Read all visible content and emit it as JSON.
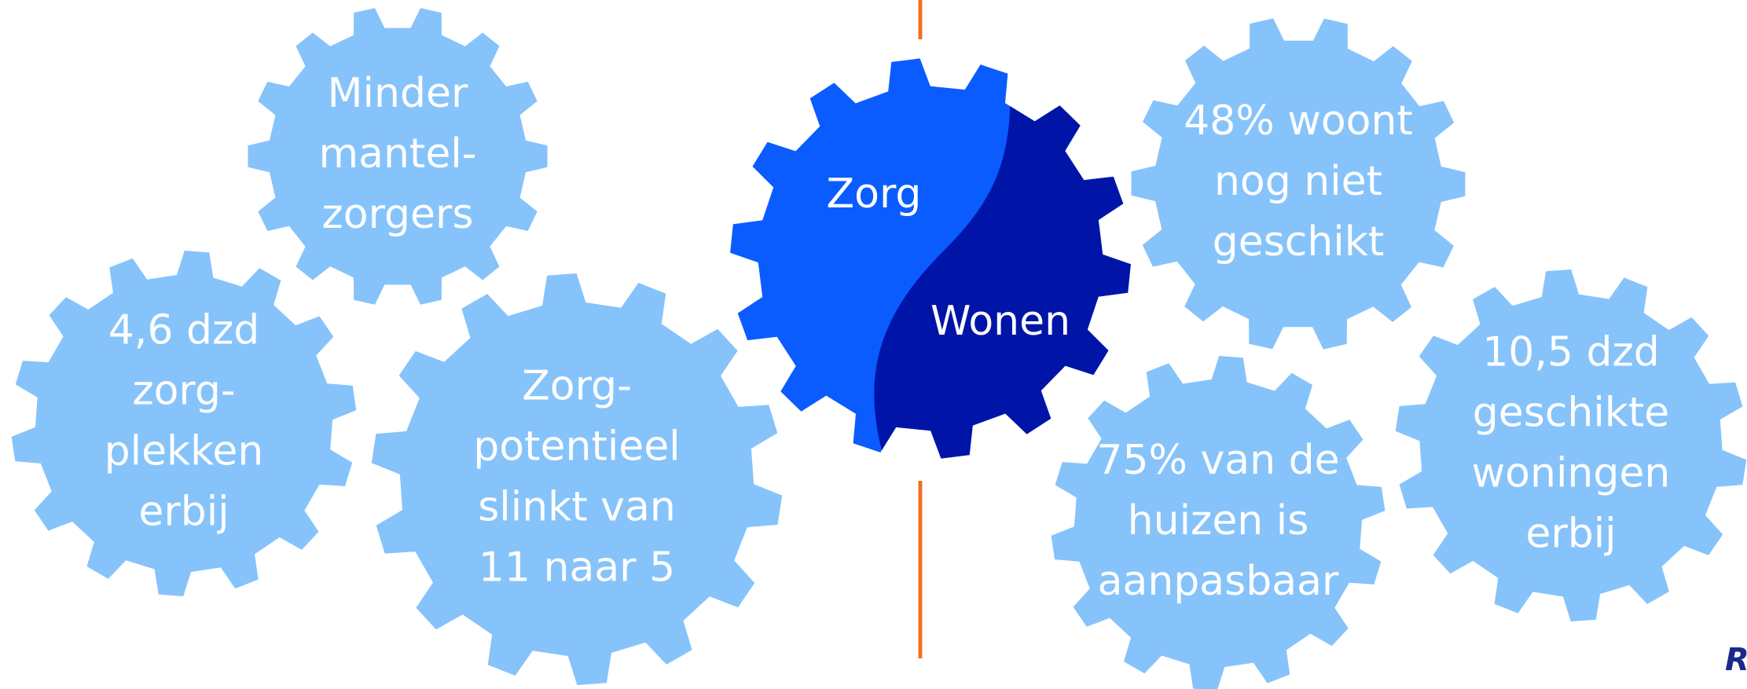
{
  "center": {
    "left": "Zorg",
    "right": "Wonen"
  },
  "gears": [
    {
      "lines": [
        "Minder",
        "mantel-",
        "zorgers"
      ]
    },
    {
      "lines": [
        "4,6 dzd",
        "zorg-",
        "plekken",
        "erbij"
      ]
    },
    {
      "lines": [
        "Zorg-",
        "potentieel",
        "slinkt van",
        "11 naar 5"
      ]
    },
    {
      "lines": [
        "48% woont",
        "nog niet",
        "geschikt"
      ]
    },
    {
      "lines": [
        "75% van de",
        "huizen is",
        "aanpasbaar"
      ]
    },
    {
      "lines": [
        "10,5 dzd",
        "geschikte",
        "woningen",
        "erbij"
      ]
    }
  ],
  "brand": "Rab"
}
